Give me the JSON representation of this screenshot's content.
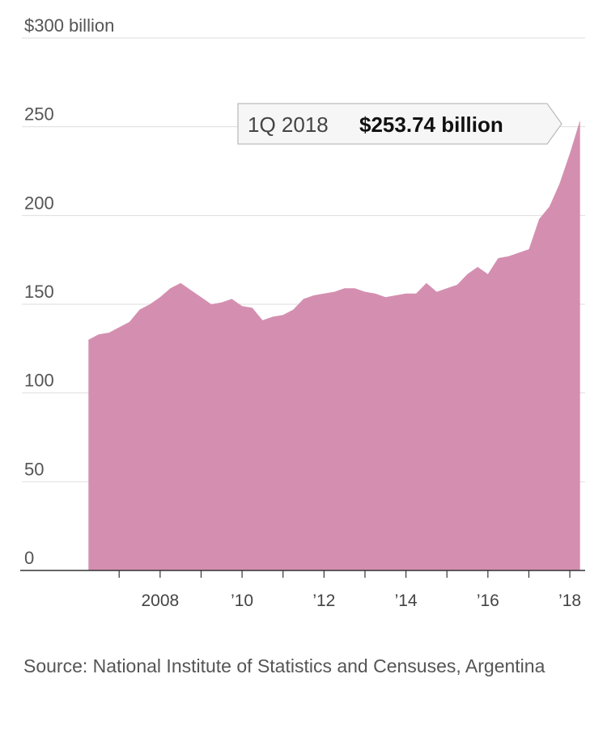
{
  "chart_data": {
    "type": "area",
    "y_unit_label": "$300 billion",
    "ylim": [
      0,
      300
    ],
    "yticks": [
      {
        "value": 300,
        "label": "$300 billion"
      },
      {
        "value": 250,
        "label": "250"
      },
      {
        "value": 200,
        "label": "200"
      },
      {
        "value": 150,
        "label": "150"
      },
      {
        "value": 100,
        "label": "100"
      },
      {
        "value": 50,
        "label": "50"
      },
      {
        "value": 0,
        "label": "0"
      }
    ],
    "xlim": [
      2006.0,
      2018.5
    ],
    "xticks": [
      {
        "value": 2008,
        "label": "2008"
      },
      {
        "value": 2010,
        "label": "’10"
      },
      {
        "value": 2012,
        "label": "’12"
      },
      {
        "value": 2014,
        "label": "’14"
      },
      {
        "value": 2016,
        "label": "’16"
      },
      {
        "value": 2018,
        "label": "’18"
      }
    ],
    "series": [
      {
        "color": "#d48fb0",
        "points": [
          [
            2006.25,
            130
          ],
          [
            2006.5,
            133
          ],
          [
            2006.75,
            134
          ],
          [
            2007.0,
            137
          ],
          [
            2007.25,
            140
          ],
          [
            2007.5,
            147
          ],
          [
            2007.75,
            150
          ],
          [
            2008.0,
            154
          ],
          [
            2008.25,
            159
          ],
          [
            2008.5,
            162
          ],
          [
            2008.75,
            158
          ],
          [
            2009.0,
            154
          ],
          [
            2009.25,
            150
          ],
          [
            2009.5,
            151
          ],
          [
            2009.75,
            153
          ],
          [
            2010.0,
            149
          ],
          [
            2010.25,
            148
          ],
          [
            2010.5,
            141
          ],
          [
            2010.75,
            143
          ],
          [
            2011.0,
            144
          ],
          [
            2011.25,
            147
          ],
          [
            2011.5,
            153
          ],
          [
            2011.75,
            155
          ],
          [
            2012.0,
            156
          ],
          [
            2012.25,
            157
          ],
          [
            2012.5,
            159
          ],
          [
            2012.75,
            159
          ],
          [
            2013.0,
            157
          ],
          [
            2013.25,
            156
          ],
          [
            2013.5,
            154
          ],
          [
            2013.75,
            155
          ],
          [
            2014.0,
            156
          ],
          [
            2014.25,
            156
          ],
          [
            2014.5,
            162
          ],
          [
            2014.75,
            157
          ],
          [
            2015.0,
            159
          ],
          [
            2015.25,
            161
          ],
          [
            2015.5,
            167
          ],
          [
            2015.75,
            171
          ],
          [
            2016.0,
            167
          ],
          [
            2016.25,
            176
          ],
          [
            2016.5,
            177
          ],
          [
            2016.75,
            179
          ],
          [
            2017.0,
            181
          ],
          [
            2017.25,
            198
          ],
          [
            2017.5,
            205
          ],
          [
            2017.75,
            218
          ],
          [
            2018.0,
            235
          ],
          [
            2018.25,
            253.74
          ]
        ]
      }
    ],
    "annotation": {
      "period": "1Q 2018",
      "value_label": "$253.74 billion",
      "x": 2018.25,
      "y": 253.74
    }
  },
  "source_text": "Source: National Institute of Statistics and Censuses, Argentina"
}
